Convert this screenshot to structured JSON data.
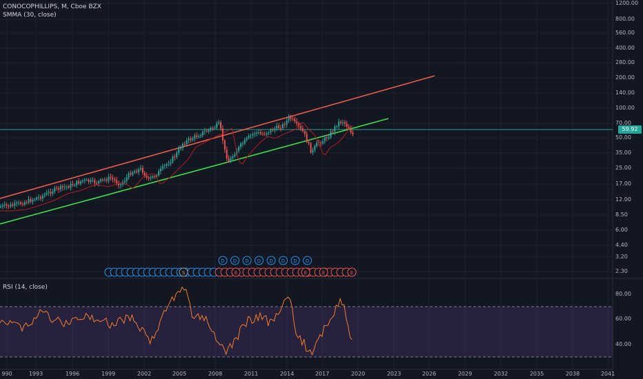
{
  "main_legend": {
    "symbol_line": "CONOCOPHILLIPS, M, Cboe BZX",
    "indicator": "SMMA (30, close)"
  },
  "rsi_legend": "RSI (14, close)",
  "current_price": "59.92",
  "price_axis_labels": [
    "1200.00",
    "800.00",
    "560.00",
    "400.00",
    "280.00",
    "200.00",
    "140.00",
    "100.00",
    "70.00",
    "50.00",
    "35.00",
    "25.00",
    "17.00",
    "12.00",
    "8.50",
    "6.00",
    "4.40",
    "3.20",
    "2.30"
  ],
  "rsi_axis_labels": [
    "80.00",
    "60.00",
    "40.00"
  ],
  "time_axis_labels": [
    "990",
    "1993",
    "1996",
    "1999",
    "2002",
    "2005",
    "2008",
    "2011",
    "2014",
    "2017",
    "2020",
    "2023",
    "2026",
    "2029",
    "2032",
    "2035",
    "2038",
    "2041"
  ],
  "event_marker_letters": {
    "dividend": "D",
    "split": "S",
    "earnings": "E"
  },
  "colors": {
    "background": "#131722",
    "grid": "#1e222d",
    "up": "#26a69a",
    "down": "#ef5350",
    "upper_channel": "#f05a4a",
    "lower_channel": "#3ee04a",
    "smma": "#b71c1c",
    "rsi_line": "#f57c28",
    "rsi_band": "#7e57c2",
    "dividend_marker": "#2196f3",
    "earnings_marker": "#ef5350",
    "split_marker": "#9e9e9e"
  }
}
